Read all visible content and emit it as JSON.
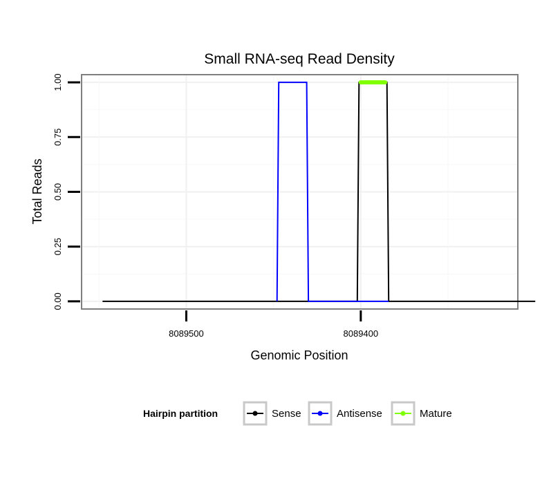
{
  "chart_data": {
    "type": "line",
    "title": "Small RNA-seq Read Density",
    "xlabel": "Genomic Position",
    "ylabel": "Total Reads",
    "x_reversed": true,
    "xlim": [
      8089560,
      8089310
    ],
    "ylim": [
      -0.035,
      1.035
    ],
    "x_ticks": [
      8089500,
      8089400
    ],
    "x_tick_labels": [
      "8089500",
      "8089400"
    ],
    "y_ticks": [
      0,
      0.25,
      0.5,
      0.75,
      1.0
    ],
    "y_tick_labels": [
      "0.00",
      "0.25",
      "0.50",
      "0.75",
      "1.00"
    ],
    "grid": true,
    "legend": {
      "title": "Hairpin partition",
      "position": "bottom",
      "entries": [
        "Sense",
        "Antisense",
        "Mature"
      ]
    },
    "series": [
      {
        "name": "Sense",
        "color": "#000000",
        "x": [
          8089548,
          8089402,
          8089401,
          8089385,
          8089384,
          8089300
        ],
        "y": [
          0,
          0,
          1,
          1,
          0,
          0
        ]
      },
      {
        "name": "Antisense",
        "color": "#0000ff",
        "x": [
          8089448,
          8089447,
          8089431,
          8089430,
          8089402,
          8089384
        ],
        "y": [
          0,
          1,
          1,
          0,
          0,
          0
        ]
      },
      {
        "name": "Mature",
        "color": "#7fff00",
        "x": [
          8089400,
          8089386
        ],
        "y": [
          1,
          1
        ]
      }
    ]
  }
}
